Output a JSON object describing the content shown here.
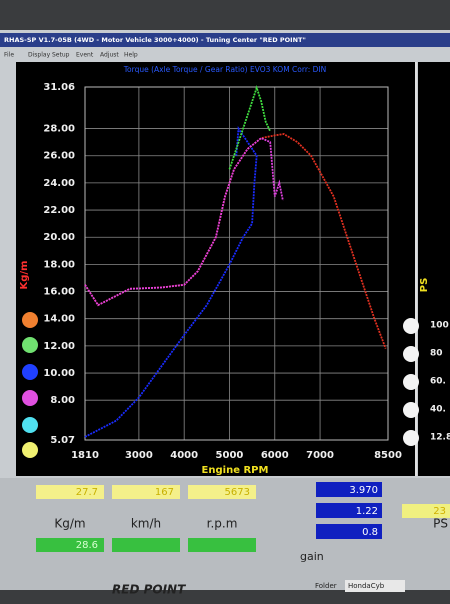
{
  "window": {
    "title": "RHAS-SP V1.7-05B  (4WD - Motor Vehicle 3000+4000) - Tuning Center \"RED POINT\"",
    "menu": [
      "File",
      "Display",
      "Setup",
      "Event",
      "Adjust",
      "Help"
    ]
  },
  "chart_data": {
    "type": "line",
    "title": "Torque (Axle Torque / Gear Ratio)  EVO3  KOM     Corr: DIN",
    "x_label": "Engine RPM",
    "y_label": "Kg/m",
    "xlim": [
      1810,
      8500
    ],
    "xticks": [
      1810,
      3000,
      4000,
      5000,
      6000,
      7000,
      8500
    ],
    "ylim": [
      5.07,
      31.06
    ],
    "yticks": [
      5.07,
      {
        "value": 8,
        "label": "8.00"
      },
      {
        "value": 10,
        "label": "10.00"
      },
      {
        "value": 12,
        "label": "12.00"
      },
      {
        "value": 14,
        "label": "14.00"
      },
      {
        "value": 16,
        "label": "16.00"
      },
      {
        "value": 18,
        "label": "18.00"
      },
      {
        "value": 20,
        "label": "20.00"
      },
      {
        "value": 22,
        "label": "22.00"
      },
      {
        "value": 24,
        "label": "24.00"
      },
      {
        "value": 26,
        "label": "26.00"
      },
      {
        "value": 28,
        "label": "28.00"
      },
      31.06
    ],
    "grid": true,
    "series": [
      {
        "color": "#1a2cff",
        "x": [
          1810,
          2500,
          3000,
          3500,
          4000,
          4500,
          5000,
          5300,
          5500,
          5550,
          5600,
          5400,
          5200,
          5150
        ],
        "values": [
          5.3,
          6.5,
          8.2,
          10.5,
          12.8,
          15,
          18,
          20,
          21,
          24,
          26,
          27,
          28,
          26
        ]
      },
      {
        "color": "#e03020",
        "x": [
          1810,
          2100,
          2800,
          3500,
          4000,
          4300,
          4700,
          4900,
          5100,
          5400,
          5700,
          6000,
          6200,
          6500,
          6800,
          7000,
          7300,
          7600,
          7900,
          8200,
          8450
        ],
        "values": [
          16.5,
          15,
          16.2,
          16.3,
          16.5,
          17.5,
          20,
          23,
          25,
          26.5,
          27.3,
          27.5,
          27.6,
          27,
          26,
          24.8,
          23,
          20,
          17,
          14,
          11.8
        ]
      },
      {
        "color": "#40e040",
        "x": [
          5000,
          5300,
          5600,
          5700,
          5800,
          5900
        ],
        "values": [
          25,
          28,
          31,
          30,
          28.5,
          27.8
        ]
      },
      {
        "color": "#e040e0",
        "x": [
          1810,
          2100,
          2800,
          3500,
          4000,
          4300,
          4700,
          4900,
          5100,
          5400,
          5700,
          5900,
          5950,
          6000,
          6100,
          6180
        ],
        "values": [
          16.5,
          15,
          16.2,
          16.3,
          16.5,
          17.5,
          20,
          23,
          25,
          26.5,
          27.3,
          27,
          25,
          23,
          24,
          22.7
        ]
      }
    ]
  },
  "right_axis": {
    "label": "PS",
    "ticks": [
      "100",
      "80",
      "60.",
      "40.",
      "12.8"
    ]
  },
  "readouts": {
    "top": [
      "27.7",
      "167",
      "5673"
    ],
    "labels": [
      "Kg/m",
      "km/h",
      "r.p.m"
    ],
    "bottom": [
      "28.6"
    ],
    "blue": [
      "3.970",
      "1.22",
      "0.8"
    ],
    "gain": "gain",
    "ps": "PS",
    "ps_value": "23"
  },
  "footer": {
    "logo": "RED POINT",
    "folder": "Folder",
    "folder_name": "HondaCyb"
  }
}
